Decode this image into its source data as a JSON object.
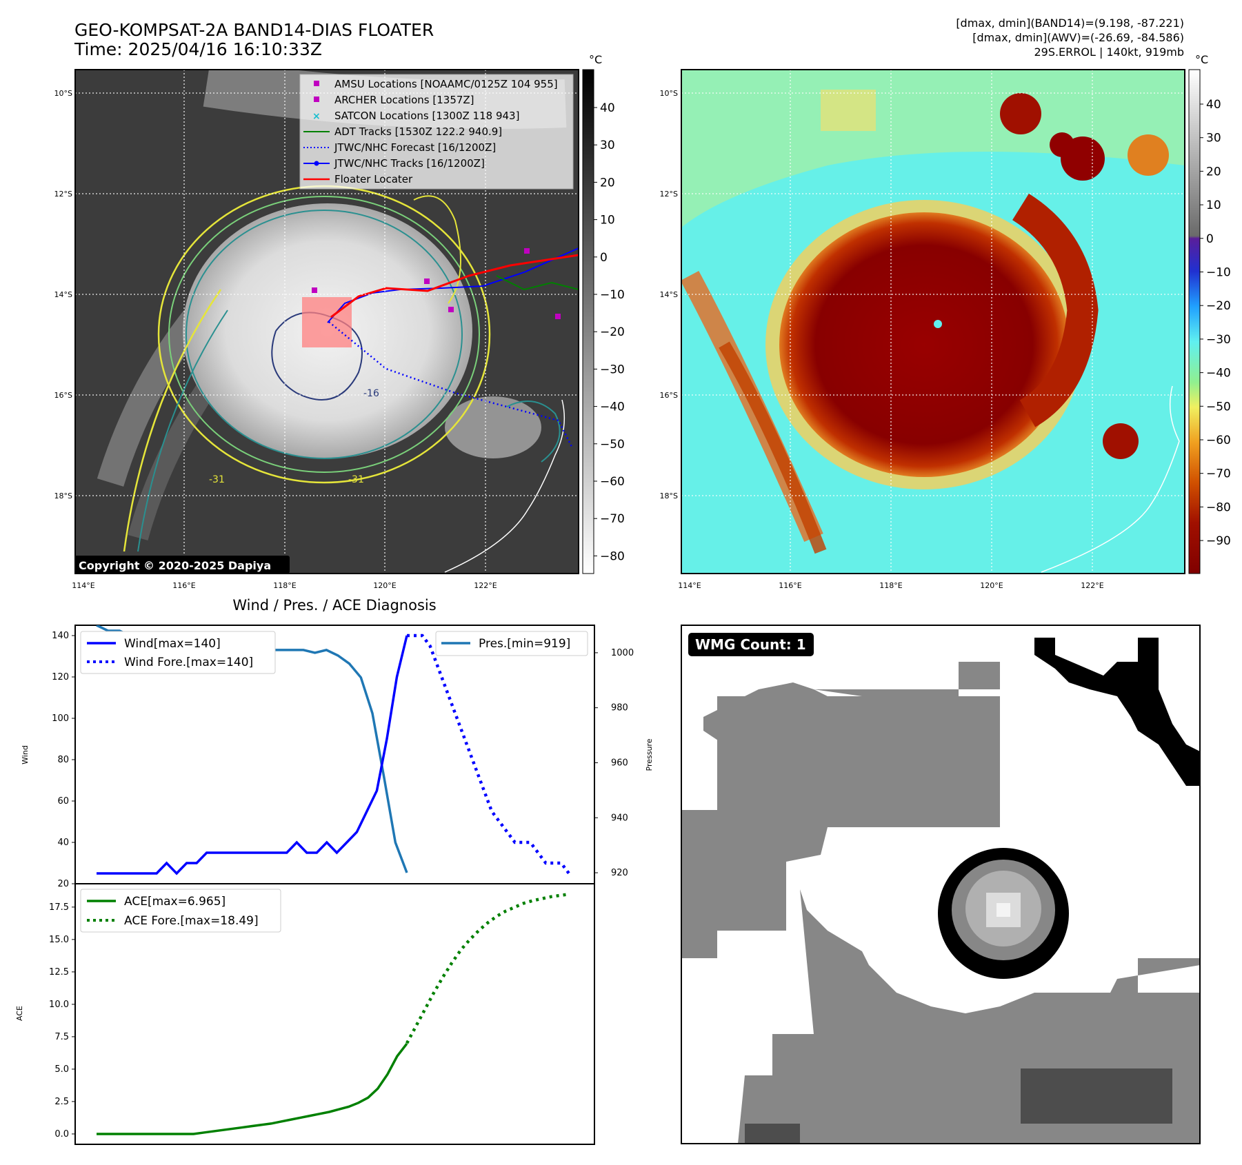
{
  "header": {
    "title_line1": "GEO-KOMPSAT-2A BAND14-DIAS FLOATER",
    "title_line2": "Time: 2025/04/16 16:10:33Z",
    "info_line1": "[dmax, dmin](BAND14)=(9.198, -87.221)",
    "info_line2": "[dmax, dmin](AWV)=(-26.69, -84.586)",
    "info_line3": "29S.ERROL | 140kt, 919mb"
  },
  "map": {
    "lon_ticks": [
      "114°E",
      "116°E",
      "118°E",
      "120°E",
      "122°E"
    ],
    "lat_ticks": [
      "10°S",
      "12°S",
      "14°S",
      "16°S",
      "18°S"
    ],
    "copyright": "Copyright © 2020-2025 Dapiya",
    "contour_labels": [
      "-31",
      "-16",
      "-31"
    ],
    "legend": [
      {
        "label": "AMSU Locations [NOAAMC/0125Z 104 955]",
        "color": "#c000c0",
        "marker": "square"
      },
      {
        "label": "ARCHER Locations [1357Z]",
        "color": "#c000c0",
        "marker": "square"
      },
      {
        "label": "SATCON Locations [1300Z 118 943]",
        "color": "#17becf",
        "marker": "x"
      },
      {
        "label": "ADT Tracks [1530Z 122.2 940.9]",
        "color": "#008000",
        "marker": "line"
      },
      {
        "label": "JTWC/NHC Forecast [16/1200Z]",
        "color": "#0000ff",
        "marker": "dotted"
      },
      {
        "label": "JTWC/NHC Tracks [16/1200Z]",
        "color": "#0000ff",
        "marker": "line-dot"
      },
      {
        "label": "Floater Locater",
        "color": "#ff0000",
        "marker": "line"
      }
    ]
  },
  "colorbar_gray": {
    "unit": "°C",
    "ticks": [
      "40",
      "30",
      "20",
      "10",
      "0",
      "−10",
      "−20",
      "−30",
      "−40",
      "−50",
      "−60",
      "−70",
      "−80"
    ]
  },
  "colorbar_color": {
    "unit": "°C",
    "ticks": [
      "40",
      "30",
      "20",
      "10",
      "0",
      "−10",
      "−20",
      "−30",
      "−40",
      "−50",
      "−60",
      "−70",
      "−80",
      "−90"
    ]
  },
  "wmg": {
    "label": "WMG Count: 1"
  },
  "chart_data": [
    {
      "type": "line",
      "title": "Wind / Pres. / ACE Diagnosis",
      "ylabel": "Wind",
      "y2label": "Pressure",
      "ylim": [
        20,
        145
      ],
      "y2lim": [
        916,
        1010
      ],
      "yticks": [
        20,
        40,
        60,
        80,
        100,
        120,
        140
      ],
      "y2ticks": [
        920,
        940,
        960,
        980,
        1000
      ],
      "series": [
        {
          "name": "Wind[max=140]",
          "color": "#0000ff",
          "style": "solid",
          "values": [
            25,
            25,
            25,
            25,
            25,
            25,
            25,
            30,
            25,
            30,
            30,
            35,
            35,
            35,
            35,
            35,
            35,
            35,
            35,
            35,
            40,
            35,
            35,
            40,
            35,
            40,
            45,
            55,
            65,
            90,
            120,
            140
          ]
        },
        {
          "name": "Wind Fore.[max=140]",
          "color": "#0000ff",
          "style": "dotted",
          "values": [
            140,
            140,
            140,
            135,
            125,
            115,
            105,
            95,
            85,
            75,
            65,
            55,
            50,
            45,
            40,
            40,
            40,
            35,
            30,
            30,
            30,
            25
          ]
        },
        {
          "name": "Pres.[min=919]",
          "color": "#1f77b4",
          "style": "solid",
          "values": [
            1010,
            1008,
            1008,
            1006,
            1004,
            1002,
            1001,
            1002,
            1001,
            1001,
            1001,
            1001,
            1001,
            1001,
            1001,
            1001,
            1001,
            1001,
            1001,
            1000,
            1001,
            999,
            996,
            991,
            978,
            955,
            931,
            920
          ]
        }
      ]
    },
    {
      "type": "line",
      "ylabel": "ACE",
      "ylim": [
        -0.8,
        19.3
      ],
      "yticks": [
        "0.0",
        "2.5",
        "5.0",
        "7.5",
        "10.0",
        "12.5",
        "15.0",
        "17.5"
      ],
      "series": [
        {
          "name": "ACE[max=6.965]",
          "color": "#008000",
          "style": "solid",
          "values": [
            0,
            0,
            0,
            0,
            0,
            0,
            0,
            0,
            0,
            0,
            0,
            0.1,
            0.2,
            0.3,
            0.4,
            0.5,
            0.6,
            0.7,
            0.8,
            0.95,
            1.1,
            1.25,
            1.4,
            1.55,
            1.7,
            1.9,
            2.1,
            2.4,
            2.8,
            3.5,
            4.6,
            6.0,
            6.965
          ]
        },
        {
          "name": "ACE Fore.[max=18.49]",
          "color": "#008000",
          "style": "dotted",
          "values": [
            7.0,
            8.3,
            9.6,
            10.9,
            12.1,
            13.2,
            14.2,
            15.0,
            15.7,
            16.3,
            16.8,
            17.2,
            17.5,
            17.8,
            18.0,
            18.15,
            18.3,
            18.4,
            18.49
          ]
        }
      ]
    }
  ]
}
